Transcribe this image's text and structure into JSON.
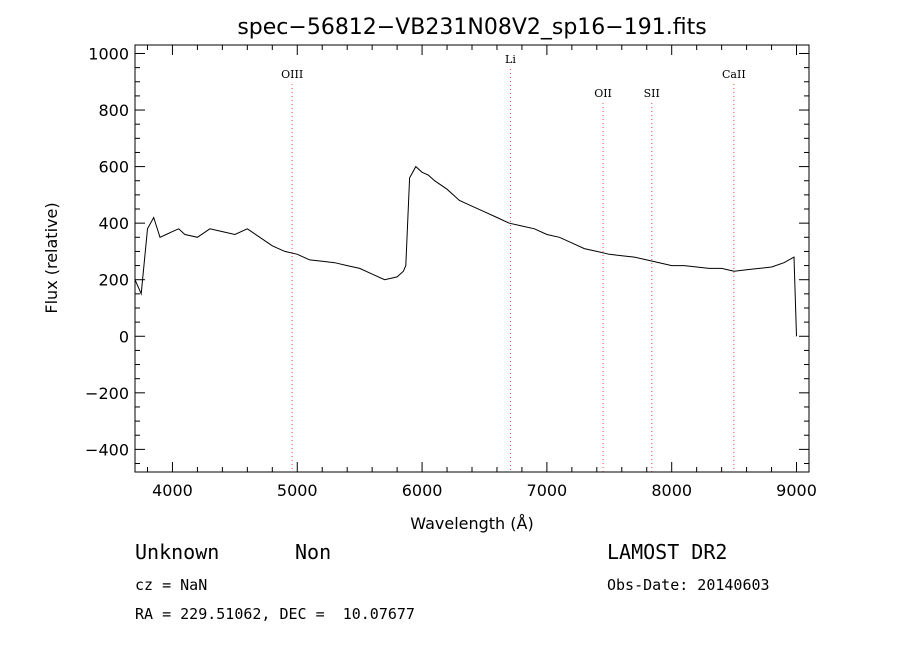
{
  "chart_data": {
    "type": "line",
    "title": "spec−56812−VB231N08V2_sp16−191.fits",
    "xlabel": "Wavelength (Å)",
    "ylabel": "Flux (relative)",
    "xlim": [
      3700,
      9100
    ],
    "ylim": [
      -480,
      1030
    ],
    "xticks": [
      4000,
      5000,
      6000,
      7000,
      8000,
      9000
    ],
    "yticks": [
      -400,
      -200,
      0,
      200,
      400,
      600,
      800,
      1000
    ],
    "ytick_labels": [
      "−400",
      "−200",
      "0",
      "200",
      "400",
      "600",
      "800",
      "1000"
    ],
    "grid": false,
    "colors": {
      "spectrum": "#000000",
      "line_markers": "#ff4a4a"
    },
    "reference_lines": [
      {
        "label": "OIII",
        "x": 4959,
        "label_row": 0
      },
      {
        "label": "Li",
        "x": 6708,
        "label_row": -1
      },
      {
        "label": "OII",
        "x": 7450,
        "label_row": 1
      },
      {
        "label": "SII",
        "x": 7840,
        "label_row": 1
      },
      {
        "label": "CaII",
        "x": 8498,
        "label_row": 0
      }
    ],
    "series": [
      {
        "x": [
          3700,
          3750,
          3800,
          3850,
          3900,
          3950,
          4000,
          4050,
          4100,
          4200,
          4300,
          4400,
          4500,
          4600,
          4700,
          4800,
          4900,
          5000,
          5100,
          5200,
          5300,
          5400,
          5500,
          5600,
          5700,
          5800,
          5850,
          5870,
          5900,
          5950,
          6000,
          6050,
          6100,
          6200,
          6300,
          6400,
          6500,
          6600,
          6700,
          6800,
          6900,
          7000,
          7100,
          7200,
          7300,
          7400,
          7500,
          7600,
          7700,
          7800,
          7900,
          8000,
          8100,
          8200,
          8300,
          8400,
          8500,
          8600,
          8700,
          8800,
          8900,
          8980,
          9000
        ],
        "y": [
          200,
          150,
          380,
          420,
          350,
          360,
          370,
          380,
          360,
          350,
          380,
          370,
          360,
          380,
          350,
          320,
          300,
          290,
          270,
          265,
          260,
          250,
          240,
          220,
          200,
          210,
          230,
          250,
          560,
          600,
          580,
          570,
          550,
          520,
          480,
          460,
          440,
          420,
          400,
          390,
          380,
          360,
          350,
          330,
          310,
          300,
          290,
          285,
          280,
          270,
          260,
          250,
          250,
          245,
          240,
          240,
          230,
          235,
          240,
          245,
          260,
          280,
          0
        ]
      }
    ]
  },
  "info": {
    "type_text": "Unknown",
    "class_text": "Non",
    "survey": "LAMOST DR2",
    "cz": "cz = NaN",
    "obs_date": "Obs-Date: 20140603",
    "coords": "RA = 229.51062, DEC =  10.07677"
  }
}
